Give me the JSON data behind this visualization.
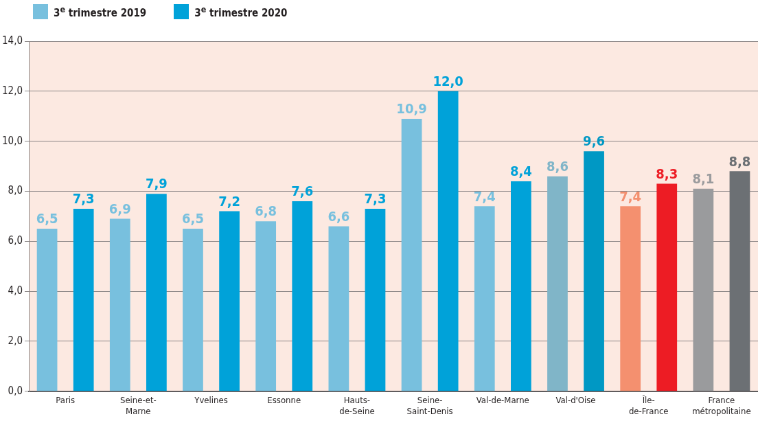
{
  "chart_data": {
    "type": "bar",
    "categories": [
      "Paris",
      "Seine-et-\nMarne",
      "Yvelines",
      "Essonne",
      "Hauts-\nde-Seine",
      "Seine-\nSaint-Denis",
      "Val-de-Marne",
      "Val-d'Oise",
      "Île-\nde-France",
      "France\nmétropolitaine"
    ],
    "series": [
      {
        "name": "3$^{e}$ trimestre 2019",
        "color": "#78c0de",
        "colors": [
          "#78c0de",
          "#78c0de",
          "#78c0de",
          "#78c0de",
          "#78c0de",
          "#78c0de",
          "#78c0de",
          "#80b5c8",
          "#f4906f",
          "#9a9b9d"
        ],
        "values": [
          6.5,
          6.9,
          6.5,
          6.8,
          6.6,
          10.9,
          7.4,
          8.6,
          7.4,
          8.1
        ],
        "value_labels": [
          "6,5",
          "6,9",
          "6,5",
          "6,8",
          "6,6",
          "10,9",
          "7,4",
          "8,6",
          "7,4",
          "8,1"
        ]
      },
      {
        "name": "3$^{e}$ trimestre 2020",
        "color": "#00a2d9",
        "colors": [
          "#00a2d9",
          "#00a2d9",
          "#00a2d9",
          "#00a2d9",
          "#00a2d9",
          "#00a2d9",
          "#00a2d9",
          "#0098c4",
          "#ed1c24",
          "#6c7074"
        ],
        "values": [
          7.3,
          7.9,
          7.2,
          7.6,
          7.3,
          12.0,
          8.4,
          9.6,
          8.3,
          8.8
        ],
        "value_labels": [
          "7,3",
          "7,9",
          "7,2",
          "7,6",
          "7,3",
          "12,0",
          "8,4",
          "9,6",
          "8,3",
          "8,8"
        ]
      }
    ],
    "ylim": [
      0,
      14
    ],
    "yticks": [
      {
        "value": 0,
        "label": "0,0"
      },
      {
        "value": 2,
        "label": "2,0"
      },
      {
        "value": 4,
        "label": "4,0"
      },
      {
        "value": 6,
        "label": "6,0"
      },
      {
        "value": 8,
        "label": "8,0"
      },
      {
        "value": 10,
        "label": "10,0"
      },
      {
        "value": 12,
        "label": "12,0"
      },
      {
        "value": 14,
        "label": "14,0"
      }
    ],
    "grid": "y",
    "legend": "top left"
  }
}
